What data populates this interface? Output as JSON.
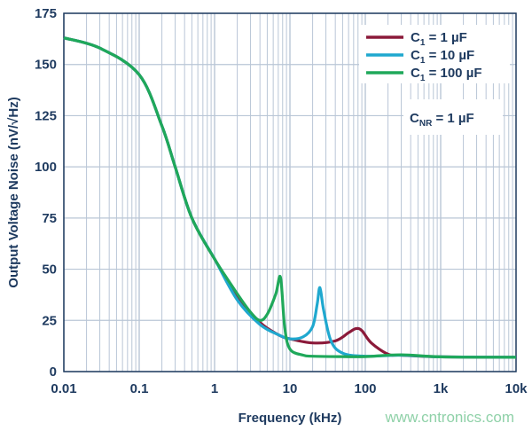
{
  "chart_data": {
    "type": "line",
    "xlabel": "Frequency (kHz)",
    "ylabel": "Output Voltage Noise (nV/√Hz)",
    "xscale": "log",
    "xlim": [
      0.01,
      10000
    ],
    "ylim": [
      0,
      175
    ],
    "xticks": [
      {
        "v": 0.01,
        "label": "0.01"
      },
      {
        "v": 0.1,
        "label": "0.1"
      },
      {
        "v": 1,
        "label": "1"
      },
      {
        "v": 10,
        "label": "10"
      },
      {
        "v": 100,
        "label": "100"
      },
      {
        "v": 1000,
        "label": "1k"
      },
      {
        "v": 10000,
        "label": "10k"
      }
    ],
    "yticks": [
      0,
      25,
      50,
      75,
      100,
      125,
      150,
      175
    ],
    "grid": true,
    "legend_position": "top-right",
    "annotation": {
      "main": "C",
      "sub": "NR",
      "rest": " = 1 µF"
    },
    "series": [
      {
        "name": "C1 = 1 µF",
        "label_main": "C",
        "label_sub": "1",
        "label_rest": " = 1 µF",
        "color": "#8b1a3a",
        "x": [
          0.01,
          0.03,
          0.1,
          0.2,
          0.3,
          0.5,
          1,
          2,
          4,
          7,
          10,
          20,
          40,
          60,
          75,
          90,
          120,
          200,
          300,
          1000,
          10000
        ],
        "y": [
          163,
          158,
          145,
          120,
          100,
          75,
          55,
          37,
          24,
          18,
          16,
          14,
          15,
          19,
          21,
          20,
          14,
          8.5,
          8,
          7.2,
          7
        ]
      },
      {
        "name": "C1 = 10 µF",
        "label_main": "C",
        "label_sub": "1",
        "label_rest": " = 10 µF",
        "color": "#1fa8cf",
        "x": [
          0.01,
          0.03,
          0.1,
          0.2,
          0.3,
          0.5,
          1,
          2,
          4,
          7,
          10,
          15,
          20,
          23,
          25,
          28,
          35,
          50,
          100,
          300,
          1000,
          10000
        ],
        "y": [
          163,
          158,
          145,
          120,
          100,
          75,
          55,
          35,
          23,
          18,
          16,
          17,
          22,
          33,
          41,
          30,
          15,
          9,
          7.5,
          8,
          7.2,
          7
        ]
      },
      {
        "name": "C1 = 100 µF",
        "label_main": "C",
        "label_sub": "1",
        "label_rest": " = 100 µF",
        "color": "#1fa85a",
        "x": [
          0.01,
          0.03,
          0.1,
          0.2,
          0.3,
          0.5,
          1,
          2,
          3,
          4,
          5,
          6.5,
          7.5,
          8.5,
          10,
          15,
          20,
          50,
          100,
          300,
          1000,
          10000
        ],
        "y": [
          163,
          158,
          145,
          120,
          100,
          75,
          55,
          38,
          29,
          25,
          28,
          38,
          46,
          22,
          11,
          8,
          7.5,
          7.3,
          7.3,
          8.2,
          7.2,
          7
        ]
      }
    ]
  },
  "watermark": "www.cntronics.com"
}
